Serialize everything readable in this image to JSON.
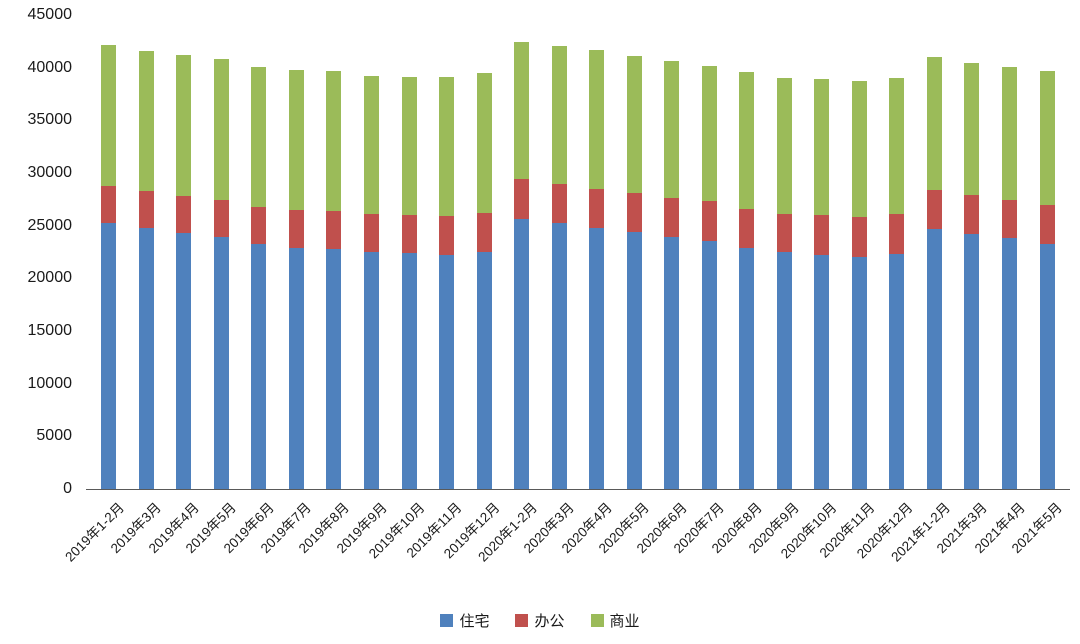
{
  "chart_data": {
    "type": "bar",
    "stacked": true,
    "title": "",
    "xlabel": "",
    "ylabel": "",
    "ylim": [
      0,
      45000
    ],
    "y_ticks": [
      0,
      5000,
      10000,
      15000,
      20000,
      25000,
      30000,
      35000,
      40000,
      45000
    ],
    "grid": false,
    "legend_position": "bottom",
    "categories": [
      "2019年1-2月",
      "2019年3月",
      "2019年4月",
      "2019年5月",
      "2019年6月",
      "2019年7月",
      "2019年8月",
      "2019年9月",
      "2019年10月",
      "2019年11月",
      "2019年12月",
      "2020年1-2月",
      "2020年3月",
      "2020年4月",
      "2020年5月",
      "2020年6月",
      "2020年7月",
      "2020年8月",
      "2020年9月",
      "2020年10月",
      "2020年11月",
      "2020年12月",
      "2021年1-2月",
      "2021年3月",
      "2021年4月",
      "2021年5月"
    ],
    "series": [
      {
        "name": "住宅",
        "color": "#4F81BD",
        "values": [
          25300,
          24800,
          24300,
          23900,
          23300,
          22900,
          22800,
          22500,
          22400,
          22200,
          22500,
          25600,
          25300,
          24800,
          24400,
          23900,
          23500,
          22900,
          22500,
          22200,
          22000,
          22300,
          24700,
          24200,
          23800,
          23300
        ]
      },
      {
        "name": "办公",
        "color": "#C0504D",
        "values": [
          3500,
          3500,
          3500,
          3500,
          3500,
          3600,
          3600,
          3600,
          3600,
          3700,
          3700,
          3800,
          3700,
          3700,
          3700,
          3700,
          3800,
          3700,
          3600,
          3800,
          3800,
          3800,
          3700,
          3700,
          3600,
          3700
        ]
      },
      {
        "name": "商业",
        "color": "#9BBB59",
        "values": [
          13400,
          13300,
          13400,
          13400,
          13300,
          13300,
          13300,
          13100,
          13100,
          13200,
          13300,
          13000,
          13100,
          13200,
          13000,
          13000,
          12900,
          13000,
          12900,
          12900,
          12900,
          12900,
          12600,
          12500,
          12700,
          12700
        ]
      }
    ]
  }
}
